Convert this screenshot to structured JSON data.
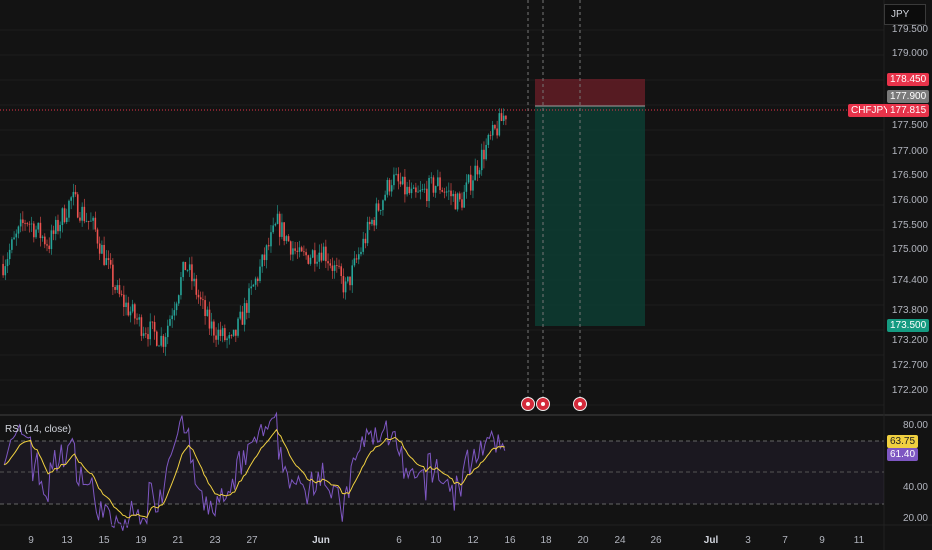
{
  "currency_selector": "JPY",
  "symbol": "CHFJPY",
  "price_axis": [
    "179.500",
    "179.000",
    "178.450",
    "177.900",
    "177.500",
    "177.000",
    "176.500",
    "176.000",
    "175.500",
    "175.000",
    "174.400",
    "173.800",
    "173.500",
    "173.200",
    "172.700",
    "172.200"
  ],
  "price_tags": {
    "stop": {
      "label": "178.450",
      "color": "#e8334a"
    },
    "entry": {
      "label": "177.900",
      "color": "#7a7a7a"
    },
    "last": {
      "label": "177.815",
      "color": "#e8334a"
    },
    "target": {
      "label": "173.500",
      "color": "#159b81"
    }
  },
  "rsi": {
    "title": "RSI (14, close)",
    "axis": [
      "80.00",
      "40.00",
      "20.00"
    ],
    "rsi_value": {
      "label": "63.75",
      "color": "#f0d040"
    },
    "ma_value": {
      "label": "61.40",
      "color": "#7e57c2"
    }
  },
  "time_axis": [
    "9",
    "13",
    "15",
    "19",
    "21",
    "23",
    "27",
    "Jun",
    "6",
    "10",
    "12",
    "16",
    "18",
    "20",
    "24",
    "26",
    "Jul",
    "3",
    "7",
    "9",
    "11"
  ],
  "events": [
    "earnings-event",
    "earnings-event",
    "earnings-event"
  ],
  "chart_data": {
    "type": "candlestick",
    "symbol": "CHFJPY",
    "price_range": [
      172.0,
      179.8
    ],
    "trade_position": {
      "direction": "short",
      "stop": 178.45,
      "entry": 177.9,
      "target": 173.5
    },
    "last_price": 177.815,
    "price_path": [
      {
        "d": 0,
        "p": 174.8
      },
      {
        "d": 2,
        "p": 175.7
      },
      {
        "d": 4,
        "p": 175.2
      },
      {
        "d": 6,
        "p": 176.1
      },
      {
        "d": 8,
        "p": 175.5
      },
      {
        "d": 10,
        "p": 174.2
      },
      {
        "d": 12,
        "p": 173.6
      },
      {
        "d": 14,
        "p": 173.3
      },
      {
        "d": 16,
        "p": 174.8
      },
      {
        "d": 18,
        "p": 173.6
      },
      {
        "d": 20,
        "p": 173.2
      },
      {
        "d": 22,
        "p": 174.4
      },
      {
        "d": 24,
        "p": 175.6
      },
      {
        "d": 26,
        "p": 174.9
      },
      {
        "d": 28,
        "p": 175.1
      },
      {
        "d": 30,
        "p": 174.3
      },
      {
        "d": 32,
        "p": 175.5
      },
      {
        "d": 34,
        "p": 176.5
      },
      {
        "d": 36,
        "p": 176.1
      },
      {
        "d": 38,
        "p": 176.4
      },
      {
        "d": 40,
        "p": 176.0
      },
      {
        "d": 42,
        "p": 177.0
      },
      {
        "d": 44,
        "p": 177.8
      }
    ],
    "rsi_axis_range": [
      20,
      85
    ],
    "rsi_levels": [
      70,
      50,
      30
    ]
  }
}
